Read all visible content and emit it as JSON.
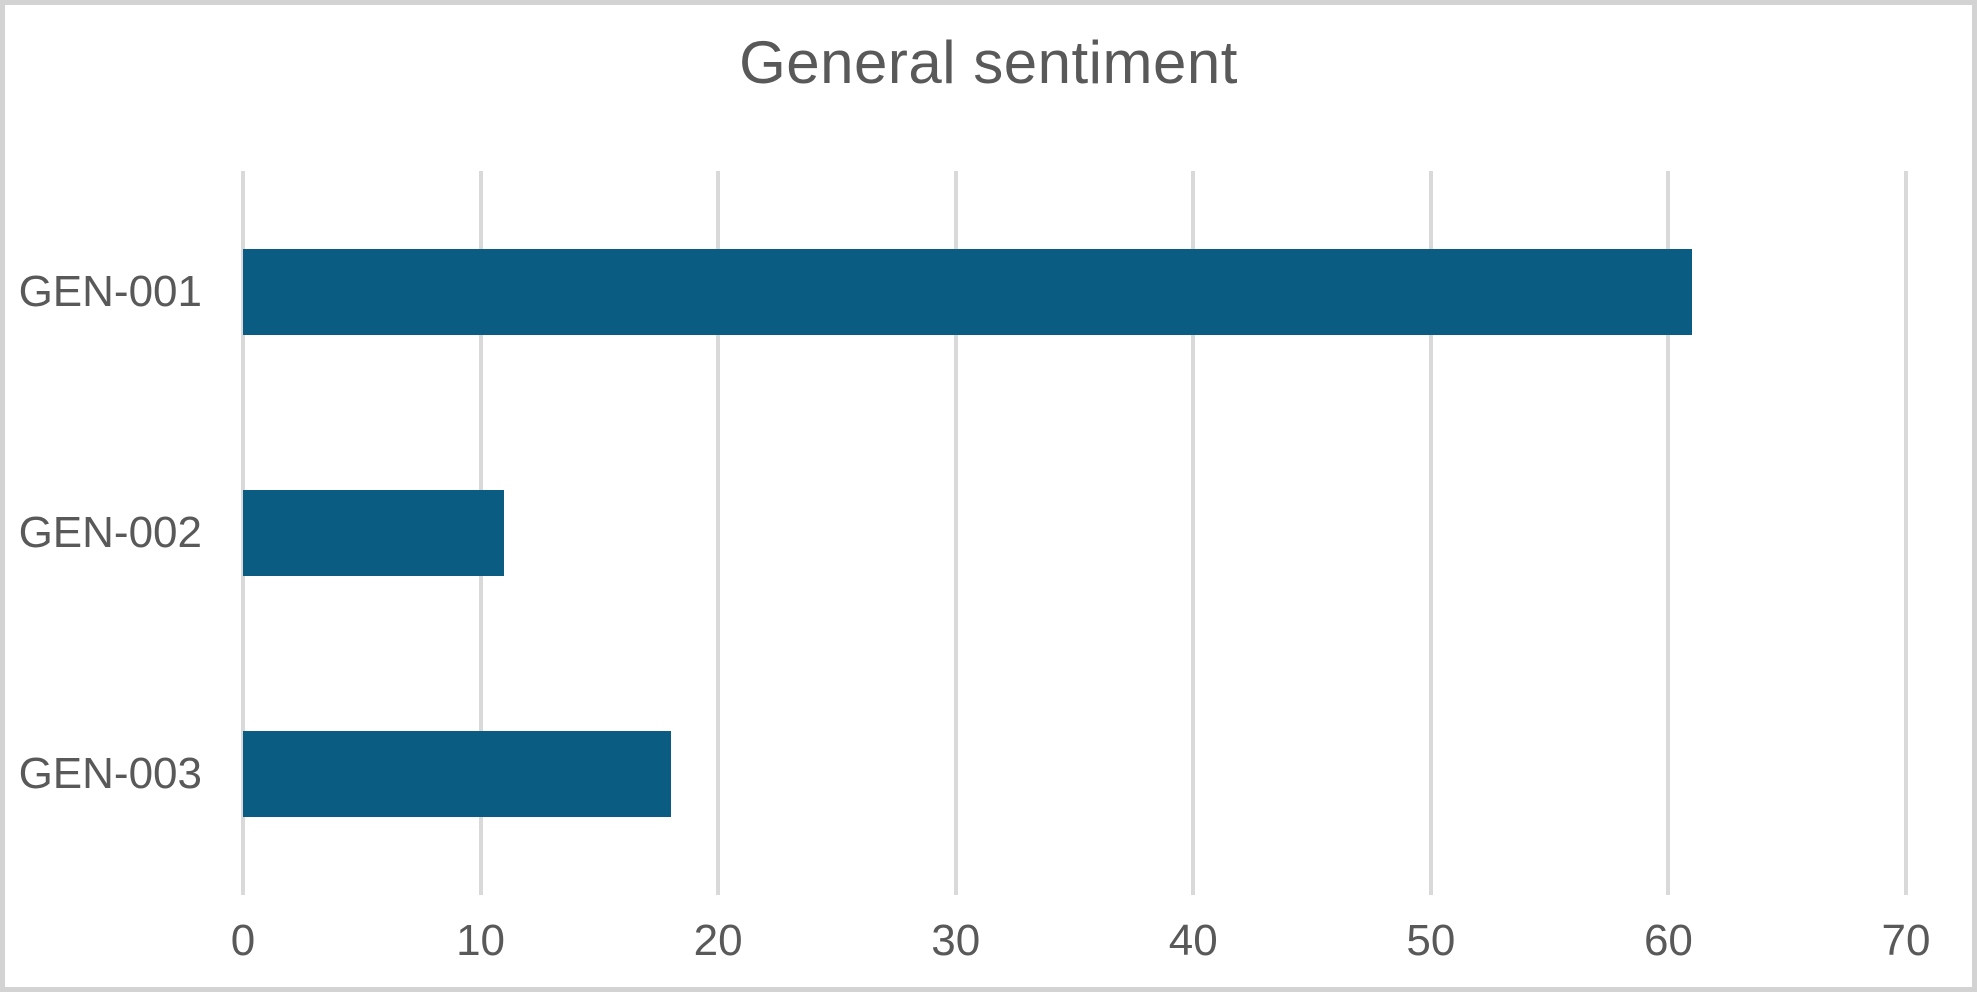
{
  "chart_data": {
    "type": "bar",
    "orientation": "horizontal",
    "title": "General sentiment",
    "categories": [
      "GEN-001",
      "GEN-002",
      "GEN-003"
    ],
    "values": [
      61,
      11,
      18
    ],
    "xlim": [
      0,
      70
    ],
    "x_ticks": [
      0,
      10,
      20,
      30,
      40,
      50,
      60,
      70
    ],
    "grid": true,
    "legend": "none",
    "colors": {
      "bar": "#0a5c82",
      "title_text": "#595959",
      "axis_text": "#595959",
      "gridline": "#d9d9d9",
      "background": "#ffffff",
      "frame_border": "#d3d3d3"
    }
  }
}
